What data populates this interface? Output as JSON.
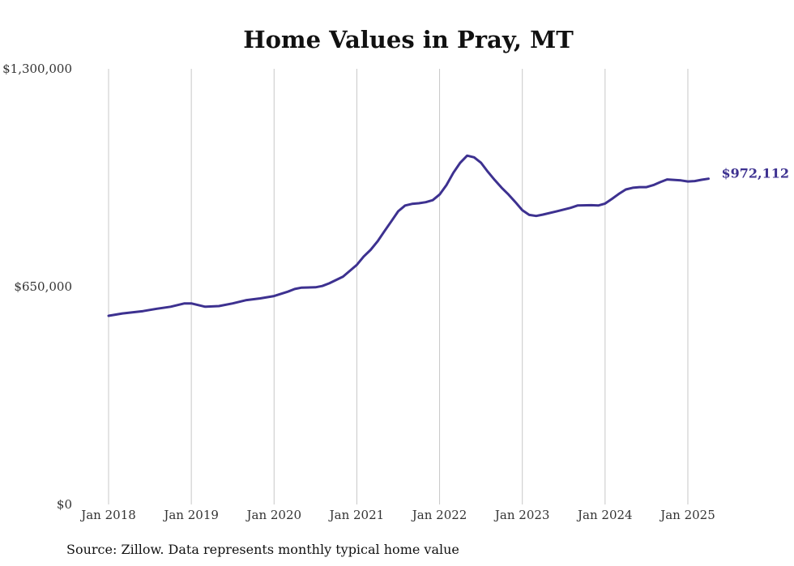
{
  "chart_data": {
    "type": "line",
    "title": "Home Values in Pray, MT",
    "source": "Source: Zillow. Data represents monthly typical home value",
    "xlabel": "",
    "ylabel": "",
    "ylim": [
      0,
      1300000
    ],
    "y_ticks": [
      {
        "value": 0,
        "label": "$0"
      },
      {
        "value": 650000,
        "label": "$650,000"
      },
      {
        "value": 1300000,
        "label": "$1,300,000"
      }
    ],
    "x_ticks": [
      {
        "value": 2018.0,
        "label": "Jan 2018"
      },
      {
        "value": 2019.0,
        "label": "Jan 2019"
      },
      {
        "value": 2020.0,
        "label": "Jan 2020"
      },
      {
        "value": 2021.0,
        "label": "Jan 2021"
      },
      {
        "value": 2022.0,
        "label": "Jan 2022"
      },
      {
        "value": 2023.0,
        "label": "Jan 2023"
      },
      {
        "value": 2024.0,
        "label": "Jan 2024"
      },
      {
        "value": 2025.0,
        "label": "Jan 2025"
      }
    ],
    "grid": "vertical",
    "line_color": "#3d3190",
    "end_label": "$972,112",
    "series": [
      {
        "x": [
          2018.0,
          2018.167,
          2018.417,
          2018.583,
          2018.75,
          2018.917,
          2019.0,
          2019.167,
          2019.333,
          2019.5,
          2019.667,
          2019.833,
          2020.0,
          2020.167,
          2020.25,
          2020.333,
          2020.5,
          2020.583,
          2020.667,
          2020.833,
          2021.0,
          2021.083,
          2021.167,
          2021.25,
          2021.333,
          2021.417,
          2021.5,
          2021.583,
          2021.667,
          2021.75,
          2021.833,
          2021.917,
          2022.0,
          2022.083,
          2022.167,
          2022.25,
          2022.333,
          2022.417,
          2022.5,
          2022.583,
          2022.667,
          2022.75,
          2022.833,
          2022.917,
          2023.0,
          2023.083,
          2023.167,
          2023.25,
          2023.417,
          2023.583,
          2023.667,
          2023.833,
          2023.917,
          2024.0,
          2024.083,
          2024.167,
          2024.25,
          2024.333,
          2024.417,
          2024.5,
          2024.583,
          2024.667,
          2024.75,
          2024.917,
          2025.0,
          2025.083,
          2025.167,
          2025.25
        ],
        "values": [
          563000,
          570000,
          577000,
          584000,
          590000,
          600000,
          600000,
          590000,
          592000,
          600000,
          610000,
          615000,
          622000,
          635000,
          643000,
          647000,
          648000,
          652000,
          660000,
          680000,
          715000,
          740000,
          760000,
          785000,
          815000,
          845000,
          875000,
          892000,
          897000,
          899000,
          902000,
          908000,
          925000,
          953000,
          990000,
          1020000,
          1041000,
          1036000,
          1020000,
          993000,
          968000,
          945000,
          925000,
          902000,
          878000,
          864000,
          861000,
          865000,
          875000,
          885000,
          892000,
          893000,
          892000,
          898000,
          912000,
          927000,
          940000,
          945000,
          947000,
          947000,
          953000,
          962000,
          970000,
          967000,
          964000,
          965000,
          969000,
          972112
        ]
      }
    ]
  }
}
